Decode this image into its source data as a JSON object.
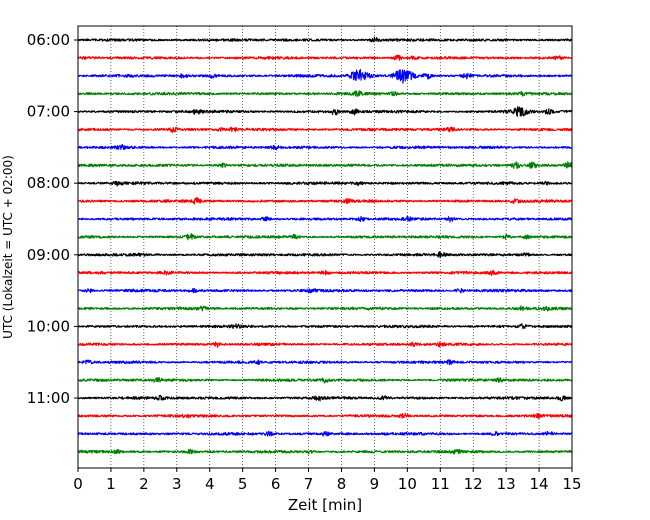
{
  "chart_data": {
    "type": "line",
    "subtype": "helicorder",
    "title": "",
    "xlabel": "Zeit  [min]",
    "ylabel": "UTC (Lokalzeit = UTC + 02:00)",
    "xlim": [
      0,
      15
    ],
    "x_ticks": [
      "0",
      "1",
      "2",
      "3",
      "4",
      "5",
      "6",
      "7",
      "8",
      "9",
      "10",
      "11",
      "12",
      "13",
      "14",
      "15"
    ],
    "y_ticks": [
      "06:00",
      "07:00",
      "08:00",
      "09:00",
      "10:00",
      "11:00"
    ],
    "traces_per_hour": 4,
    "trace_minutes": 15,
    "grid_x": true,
    "grid_style": "dotted",
    "colors": [
      "#000000",
      "#ff0000",
      "#0000ff",
      "#008000"
    ],
    "rows": [
      {
        "start": "06:00",
        "events": [
          {
            "t": 9.0,
            "amp": 2.0
          }
        ]
      },
      {
        "start": "06:15",
        "events": [
          {
            "t": 9.7,
            "amp": 2.2
          },
          {
            "t": 10.2,
            "amp": 1.5
          },
          {
            "t": 14.6,
            "amp": 1.5
          }
        ]
      },
      {
        "start": "06:30",
        "events": [
          {
            "t": 3.2,
            "amp": 1.8
          },
          {
            "t": 4.1,
            "amp": 1.5
          },
          {
            "t": 8.55,
            "amp": 5.5
          },
          {
            "t": 9.9,
            "amp": 6.5
          },
          {
            "t": 10.6,
            "amp": 2.5
          },
          {
            "t": 11.8,
            "amp": 2.0
          }
        ]
      },
      {
        "start": "06:45",
        "events": [
          {
            "t": 8.5,
            "amp": 1.8
          },
          {
            "t": 9.6,
            "amp": 1.5
          },
          {
            "t": 13.5,
            "amp": 1.5
          }
        ]
      },
      {
        "start": "07:00",
        "events": [
          {
            "t": 3.6,
            "amp": 2.2
          },
          {
            "t": 7.8,
            "amp": 2.5
          },
          {
            "t": 8.4,
            "amp": 2.5
          },
          {
            "t": 13.4,
            "amp": 4.0
          },
          {
            "t": 14.3,
            "amp": 2.0
          }
        ]
      },
      {
        "start": "07:15",
        "events": [
          {
            "t": 2.9,
            "amp": 2.5
          },
          {
            "t": 4.3,
            "amp": 1.5
          },
          {
            "t": 4.7,
            "amp": 2.0
          },
          {
            "t": 11.3,
            "amp": 1.5
          }
        ]
      },
      {
        "start": "07:30",
        "events": [
          {
            "t": 1.3,
            "amp": 1.8
          },
          {
            "t": 6.0,
            "amp": 1.3
          }
        ]
      },
      {
        "start": "07:45",
        "events": [
          {
            "t": 4.4,
            "amp": 1.5
          },
          {
            "t": 13.3,
            "amp": 3.0
          },
          {
            "t": 13.8,
            "amp": 2.5
          },
          {
            "t": 14.9,
            "amp": 3.0
          }
        ]
      },
      {
        "start": "08:00",
        "events": [
          {
            "t": 1.2,
            "amp": 2.0
          },
          {
            "t": 8.5,
            "amp": 1.5
          },
          {
            "t": 14.2,
            "amp": 1.3
          }
        ]
      },
      {
        "start": "08:15",
        "events": [
          {
            "t": 3.6,
            "amp": 2.5
          },
          {
            "t": 8.2,
            "amp": 1.3
          },
          {
            "t": 13.3,
            "amp": 1.8
          }
        ]
      },
      {
        "start": "08:30",
        "events": [
          {
            "t": 5.7,
            "amp": 1.8
          },
          {
            "t": 8.6,
            "amp": 1.8
          },
          {
            "t": 10.0,
            "amp": 1.5
          },
          {
            "t": 11.3,
            "amp": 2.2
          }
        ]
      },
      {
        "start": "08:45",
        "events": [
          {
            "t": 3.4,
            "amp": 2.5
          },
          {
            "t": 6.6,
            "amp": 1.8
          },
          {
            "t": 13.0,
            "amp": 1.8
          },
          {
            "t": 13.6,
            "amp": 1.3
          }
        ]
      },
      {
        "start": "09:00",
        "events": [
          {
            "t": 1.9,
            "amp": 1.3
          },
          {
            "t": 11.0,
            "amp": 2.5
          },
          {
            "t": 13.6,
            "amp": 1.5
          }
        ]
      },
      {
        "start": "09:15",
        "events": [
          {
            "t": 2.7,
            "amp": 1.3
          },
          {
            "t": 7.5,
            "amp": 1.5
          },
          {
            "t": 12.6,
            "amp": 1.8
          }
        ]
      },
      {
        "start": "09:30",
        "events": [
          {
            "t": 0.3,
            "amp": 1.8
          },
          {
            "t": 3.5,
            "amp": 1.3
          },
          {
            "t": 7.1,
            "amp": 1.5
          },
          {
            "t": 11.6,
            "amp": 1.5
          }
        ]
      },
      {
        "start": "09:45",
        "events": [
          {
            "t": 3.8,
            "amp": 1.5
          },
          {
            "t": 13.5,
            "amp": 1.8
          },
          {
            "t": 14.2,
            "amp": 1.3
          }
        ]
      },
      {
        "start": "10:00",
        "events": [
          {
            "t": 4.8,
            "amp": 1.5
          },
          {
            "t": 13.5,
            "amp": 1.8
          }
        ]
      },
      {
        "start": "10:15",
        "events": [
          {
            "t": 4.2,
            "amp": 2.0
          },
          {
            "t": 10.2,
            "amp": 1.5
          },
          {
            "t": 11.0,
            "amp": 1.5
          }
        ]
      },
      {
        "start": "10:30",
        "events": [
          {
            "t": 0.3,
            "amp": 1.5
          },
          {
            "t": 5.5,
            "amp": 1.3
          },
          {
            "t": 11.3,
            "amp": 1.8
          }
        ]
      },
      {
        "start": "10:45",
        "events": [
          {
            "t": 2.4,
            "amp": 1.8
          },
          {
            "t": 7.5,
            "amp": 1.8
          },
          {
            "t": 12.8,
            "amp": 1.5
          }
        ]
      },
      {
        "start": "11:00",
        "events": [
          {
            "t": 2.5,
            "amp": 1.3
          },
          {
            "t": 7.3,
            "amp": 2.0
          },
          {
            "t": 9.3,
            "amp": 1.5
          },
          {
            "t": 14.7,
            "amp": 2.0
          }
        ]
      },
      {
        "start": "11:15",
        "events": [
          {
            "t": 3.3,
            "amp": 1.3
          },
          {
            "t": 9.9,
            "amp": 2.0
          },
          {
            "t": 14.0,
            "amp": 1.5
          }
        ]
      },
      {
        "start": "11:30",
        "events": [
          {
            "t": 5.8,
            "amp": 1.8
          },
          {
            "t": 7.5,
            "amp": 1.5
          },
          {
            "t": 12.7,
            "amp": 1.8
          },
          {
            "t": 14.3,
            "amp": 1.5
          }
        ]
      },
      {
        "start": "11:45",
        "events": [
          {
            "t": 1.2,
            "amp": 1.3
          },
          {
            "t": 3.4,
            "amp": 1.5
          },
          {
            "t": 7.0,
            "amp": 1.3
          },
          {
            "t": 11.5,
            "amp": 1.5
          }
        ]
      }
    ]
  }
}
